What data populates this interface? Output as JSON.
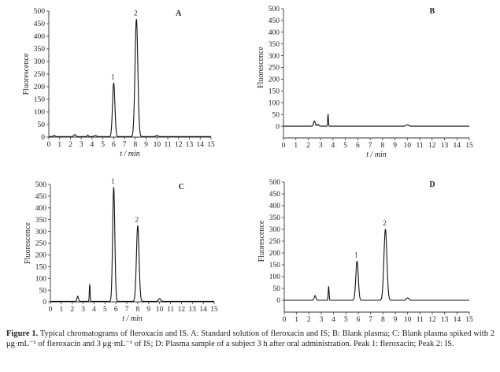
{
  "figure": {
    "caption_label": "Figure 1.",
    "caption_text": " Typical chromatograms of fleroxacin and IS. A: Standard solution of fleroxacin and IS; B: Blank plasma; C: Blank plasma spiked with 2 μg·mL⁻¹ of fleroxacin and 3 μg·mL⁻¹ of IS; D: Plasma sample of a subject 3 h after oral administration. Peak 1: fleroxacin; Peak 2: IS."
  },
  "chart_data": [
    {
      "type": "line",
      "panel": "A",
      "xlabel": "t / min",
      "ylabel": "Fluorescence",
      "xlim": [
        0,
        15
      ],
      "ylim": [
        0,
        500
      ],
      "xticks": [
        0,
        1,
        2,
        3,
        4,
        5,
        6,
        7,
        8,
        9,
        10,
        11,
        12,
        13,
        14,
        15
      ],
      "yticks": [
        0,
        50,
        100,
        150,
        200,
        250,
        300,
        350,
        400,
        450,
        500
      ],
      "peaks": [
        {
          "label": "1",
          "x": 6.0,
          "y": 212,
          "sigma": 0.11
        },
        {
          "label": "2",
          "x": 8.1,
          "y": 465,
          "sigma": 0.13
        }
      ],
      "minor_peaks": [
        {
          "x": 0.5,
          "y": 5,
          "sigma": 0.08
        },
        {
          "x": 2.4,
          "y": 8,
          "sigma": 0.1
        },
        {
          "x": 3.6,
          "y": 6,
          "sigma": 0.06
        },
        {
          "x": 4.3,
          "y": 5,
          "sigma": 0.1
        },
        {
          "x": 10.0,
          "y": 5,
          "sigma": 0.1
        }
      ],
      "baseline": 2
    },
    {
      "type": "line",
      "panel": "B",
      "xlabel": "t / min",
      "ylabel": "Fluorescence",
      "xlim": [
        0,
        15
      ],
      "ylim": [
        -50,
        500
      ],
      "xticks": [
        0,
        1,
        2,
        3,
        4,
        5,
        6,
        7,
        8,
        9,
        10,
        11,
        12,
        13,
        14,
        15
      ],
      "yticks": [
        0,
        50,
        100,
        150,
        200,
        250,
        300,
        350,
        400,
        450,
        500
      ],
      "peaks": [],
      "minor_peaks": [
        {
          "x": 2.5,
          "y": 22,
          "sigma": 0.07
        },
        {
          "x": 2.8,
          "y": 8,
          "sigma": 0.06
        },
        {
          "x": 3.6,
          "y": 50,
          "sigma": 0.03
        },
        {
          "x": 10.0,
          "y": 6,
          "sigma": 0.1
        }
      ],
      "baseline": 0
    },
    {
      "type": "line",
      "panel": "C",
      "xlabel": "t / min",
      "ylabel": "Fluorescence",
      "xlim": [
        0,
        15
      ],
      "ylim": [
        0,
        500
      ],
      "xticks": [
        0,
        1,
        2,
        3,
        4,
        5,
        6,
        7,
        8,
        9,
        10,
        11,
        12,
        13,
        14,
        15
      ],
      "yticks": [
        0,
        50,
        100,
        150,
        200,
        250,
        300,
        350,
        400,
        450,
        500
      ],
      "peaks": [
        {
          "label": "1",
          "x": 5.8,
          "y": 485,
          "sigma": 0.1
        },
        {
          "label": "2",
          "x": 8.0,
          "y": 322,
          "sigma": 0.12
        }
      ],
      "minor_peaks": [
        {
          "x": 2.5,
          "y": 22,
          "sigma": 0.07
        },
        {
          "x": 3.6,
          "y": 72,
          "sigma": 0.035
        },
        {
          "x": 10.0,
          "y": 12,
          "sigma": 0.1
        }
      ],
      "baseline": 2
    },
    {
      "type": "line",
      "panel": "D",
      "xlabel": "t / min",
      "ylabel": "Fluorescence",
      "xlim": [
        0,
        15
      ],
      "ylim": [
        -50,
        500
      ],
      "xticks": [
        0,
        1,
        2,
        3,
        4,
        5,
        6,
        7,
        8,
        9,
        10,
        11,
        12,
        13,
        14,
        15
      ],
      "yticks": [
        0,
        50,
        100,
        150,
        200,
        250,
        300,
        350,
        400,
        450,
        500
      ],
      "peaks": [
        {
          "label": "1",
          "x": 5.9,
          "y": 165,
          "sigma": 0.1
        },
        {
          "label": "2",
          "x": 8.2,
          "y": 300,
          "sigma": 0.12
        }
      ],
      "minor_peaks": [
        {
          "x": 2.5,
          "y": 20,
          "sigma": 0.07
        },
        {
          "x": 3.6,
          "y": 58,
          "sigma": 0.035
        },
        {
          "x": 10.0,
          "y": 10,
          "sigma": 0.1
        }
      ],
      "baseline": 0
    }
  ]
}
